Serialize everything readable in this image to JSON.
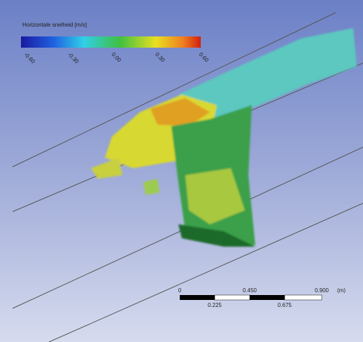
{
  "legend": {
    "title": "Horizontale snelheid [m/s]",
    "ticks": [
      "-0.60",
      "-0.30",
      "0.00",
      "0.30",
      "0.60"
    ]
  },
  "scale_bar": {
    "top_labels": [
      "0",
      "0.450",
      "0.900"
    ],
    "bottom_labels": [
      "0.225",
      "0.675"
    ],
    "unit": "(m)"
  }
}
